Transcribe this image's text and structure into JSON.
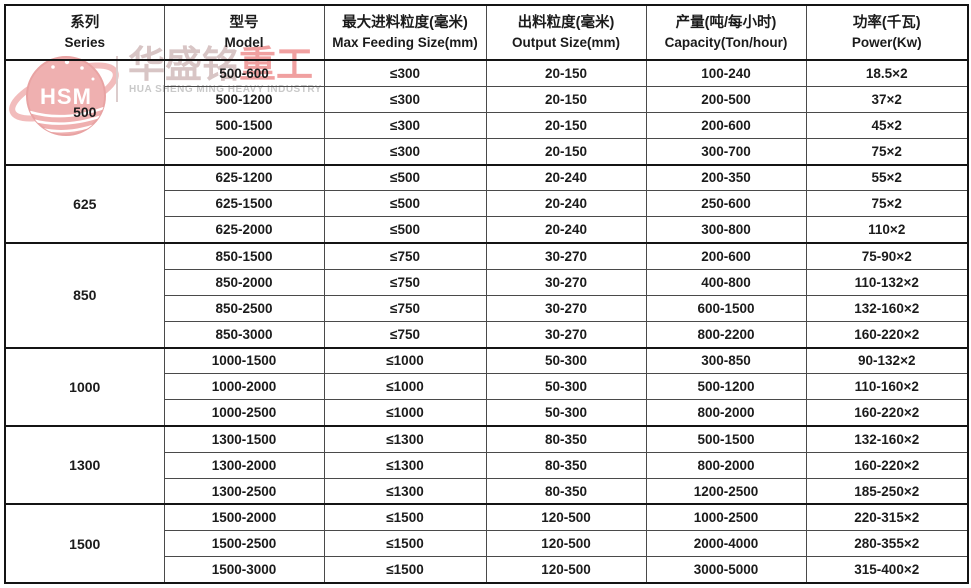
{
  "watermark": {
    "logo_text": "HSM",
    "brand_zh_muted": "华盛铭",
    "brand_zh_accent": "重工",
    "brand_en": "HUA SHENG MING HEAVY INDUSTRY",
    "colors": {
      "logo_pink": "#ec9f9f",
      "brand_muted": "#d8c5c5",
      "brand_accent": "#f0a0a0",
      "brand_en_gray": "#c9c9c9"
    }
  },
  "chart_data": {
    "type": "table",
    "columns": [
      {
        "zh": "系列",
        "en": "Series"
      },
      {
        "zh": "型号",
        "en": "Model"
      },
      {
        "zh": "最大进料粒度(毫米)",
        "en": "Max Feeding Size(mm)"
      },
      {
        "zh": "出料粒度(毫米)",
        "en": "Output Size(mm)"
      },
      {
        "zh": "产量(吨/每小时)",
        "en": "Capacity(Ton/hour)"
      },
      {
        "zh": "功率(千瓦)",
        "en": "Power(Kw)"
      }
    ],
    "groups": [
      {
        "series": "500",
        "rows": [
          [
            "500-600",
            "≤300",
            "20-150",
            "100-240",
            "18.5×2"
          ],
          [
            "500-1200",
            "≤300",
            "20-150",
            "200-500",
            "37×2"
          ],
          [
            "500-1500",
            "≤300",
            "20-150",
            "200-600",
            "45×2"
          ],
          [
            "500-2000",
            "≤300",
            "20-150",
            "300-700",
            "75×2"
          ]
        ]
      },
      {
        "series": "625",
        "rows": [
          [
            "625-1200",
            "≤500",
            "20-240",
            "200-350",
            "55×2"
          ],
          [
            "625-1500",
            "≤500",
            "20-240",
            "250-600",
            "75×2"
          ],
          [
            "625-2000",
            "≤500",
            "20-240",
            "300-800",
            "110×2"
          ]
        ]
      },
      {
        "series": "850",
        "rows": [
          [
            "850-1500",
            "≤750",
            "30-270",
            "200-600",
            "75-90×2"
          ],
          [
            "850-2000",
            "≤750",
            "30-270",
            "400-800",
            "110-132×2"
          ],
          [
            "850-2500",
            "≤750",
            "30-270",
            "600-1500",
            "132-160×2"
          ],
          [
            "850-3000",
            "≤750",
            "30-270",
            "800-2200",
            "160-220×2"
          ]
        ]
      },
      {
        "series": "1000",
        "rows": [
          [
            "1000-1500",
            "≤1000",
            "50-300",
            "300-850",
            "90-132×2"
          ],
          [
            "1000-2000",
            "≤1000",
            "50-300",
            "500-1200",
            "110-160×2"
          ],
          [
            "1000-2500",
            "≤1000",
            "50-300",
            "800-2000",
            "160-220×2"
          ]
        ]
      },
      {
        "series": "1300",
        "rows": [
          [
            "1300-1500",
            "≤1300",
            "80-350",
            "500-1500",
            "132-160×2"
          ],
          [
            "1300-2000",
            "≤1300",
            "80-350",
            "800-2000",
            "160-220×2"
          ],
          [
            "1300-2500",
            "≤1300",
            "80-350",
            "1200-2500",
            "185-250×2"
          ]
        ]
      },
      {
        "series": "1500",
        "rows": [
          [
            "1500-2000",
            "≤1500",
            "120-500",
            "1000-2500",
            "220-315×2"
          ],
          [
            "1500-2500",
            "≤1500",
            "120-500",
            "2000-4000",
            "280-355×2"
          ],
          [
            "1500-3000",
            "≤1500",
            "120-500",
            "3000-5000",
            "315-400×2"
          ]
        ]
      }
    ]
  }
}
